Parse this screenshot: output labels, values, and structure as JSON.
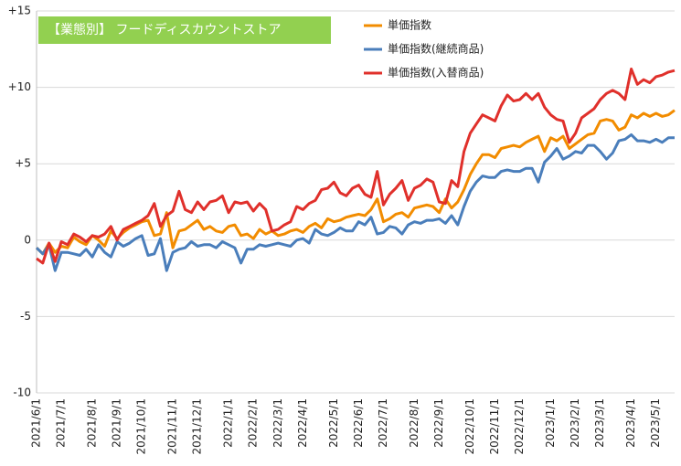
{
  "chart_data": {
    "type": "line",
    "title": "【業態別】 フードディスカウントストア",
    "categories": [
      "2021/6/1",
      null,
      null,
      null,
      "2021/7/1",
      null,
      null,
      null,
      null,
      "2021/8/1",
      null,
      null,
      null,
      "2021/9/1",
      null,
      null,
      null,
      "2021/10/1",
      null,
      null,
      null,
      null,
      "2021/11/1",
      null,
      null,
      null,
      "2021/12/1",
      null,
      null,
      null,
      null,
      "2022/1/1",
      null,
      null,
      null,
      "2022/2/1",
      null,
      null,
      null,
      "2022/3/1",
      null,
      null,
      null,
      "2022/4/1",
      null,
      null,
      null,
      null,
      "2022/5/1",
      null,
      null,
      null,
      "2022/6/1",
      null,
      null,
      null,
      "2022/7/1",
      null,
      null,
      null,
      null,
      "2022/8/1",
      null,
      null,
      null,
      "2022/9/1",
      null,
      null,
      null,
      null,
      "2022/10/1",
      null,
      null,
      null,
      "2022/11/1",
      null,
      null,
      null,
      "2022/12/1",
      null,
      null,
      null,
      null,
      "2023/1/1",
      null,
      null,
      null,
      "2023/2/1",
      null,
      null,
      null,
      "2023/3/1",
      null,
      null,
      null,
      null,
      "2023/4/1",
      null,
      null,
      null,
      "2023/5/1",
      null,
      null,
      null
    ],
    "series": [
      {
        "name": "単価指数",
        "color": "#f28c00",
        "values": [
          -0.5,
          -0.9,
          -0.2,
          -0.8,
          -0.4,
          -0.5,
          0.2,
          -0.1,
          -0.3,
          0.3,
          0.0,
          -0.4,
          0.6,
          0.1,
          0.5,
          0.8,
          1.0,
          1.2,
          1.3,
          0.3,
          0.4,
          1.8,
          -0.5,
          0.6,
          0.7,
          1.0,
          1.3,
          0.7,
          0.9,
          0.6,
          0.5,
          0.9,
          1.0,
          0.3,
          0.4,
          0.1,
          0.7,
          0.4,
          0.6,
          0.3,
          0.4,
          0.6,
          0.7,
          0.5,
          0.9,
          1.1,
          0.8,
          1.4,
          1.2,
          1.3,
          1.5,
          1.6,
          1.7,
          1.6,
          2.0,
          2.7,
          1.2,
          1.4,
          1.7,
          1.8,
          1.5,
          2.1,
          2.2,
          2.3,
          2.2,
          1.8,
          2.7,
          2.1,
          2.5,
          3.3,
          4.3,
          5.0,
          5.6,
          5.6,
          5.4,
          6.0,
          6.1,
          6.2,
          6.1,
          6.4,
          6.6,
          6.8,
          5.8,
          6.7,
          6.5,
          6.8,
          6.0,
          6.3,
          6.6,
          6.9,
          7.0,
          7.8,
          7.9,
          7.8,
          7.2,
          7.4,
          8.2,
          8.0,
          8.3,
          8.1,
          8.3,
          8.1,
          8.2,
          8.5
        ]
      },
      {
        "name": "単価指数(継続商品)",
        "color": "#4a7ebb",
        "values": [
          -0.5,
          -0.9,
          -0.3,
          -2.0,
          -0.8,
          -0.8,
          -0.9,
          -1.0,
          -0.6,
          -1.1,
          -0.3,
          -0.8,
          -1.1,
          -0.1,
          -0.4,
          -0.2,
          0.1,
          0.3,
          -1.0,
          -0.9,
          0.1,
          -2.0,
          -0.8,
          -0.6,
          -0.5,
          -0.1,
          -0.4,
          -0.3,
          -0.3,
          -0.5,
          -0.1,
          -0.3,
          -0.5,
          -1.5,
          -0.6,
          -0.6,
          -0.3,
          -0.4,
          -0.3,
          -0.2,
          -0.3,
          -0.4,
          0.0,
          0.1,
          -0.2,
          0.7,
          0.4,
          0.3,
          0.5,
          0.8,
          0.6,
          0.6,
          1.2,
          1.0,
          1.5,
          0.4,
          0.5,
          0.9,
          0.8,
          0.4,
          1.0,
          1.2,
          1.1,
          1.3,
          1.3,
          1.4,
          1.1,
          1.6,
          1.0,
          2.2,
          3.2,
          3.8,
          4.2,
          4.1,
          4.1,
          4.5,
          4.6,
          4.5,
          4.5,
          4.7,
          4.7,
          3.8,
          5.1,
          5.5,
          6.0,
          5.3,
          5.5,
          5.8,
          5.7,
          6.2,
          6.2,
          5.8,
          5.3,
          5.7,
          6.5,
          6.6,
          6.9,
          6.5,
          6.5,
          6.4,
          6.6,
          6.4,
          6.7,
          6.7
        ]
      },
      {
        "name": "単価指数(入替商品)",
        "color": "#e0302b",
        "values": [
          -1.2,
          -1.5,
          -0.2,
          -1.4,
          -0.1,
          -0.3,
          0.4,
          0.2,
          -0.1,
          0.3,
          0.2,
          0.4,
          0.9,
          0.0,
          0.7,
          0.9,
          1.1,
          1.3,
          1.6,
          2.4,
          0.9,
          1.6,
          1.9,
          3.2,
          2.0,
          1.8,
          2.5,
          2.0,
          2.5,
          2.6,
          2.9,
          1.8,
          2.5,
          2.4,
          2.5,
          1.9,
          2.4,
          2.0,
          0.6,
          0.7,
          1.0,
          1.2,
          2.2,
          2.0,
          2.4,
          2.6,
          3.3,
          3.4,
          3.8,
          3.1,
          2.9,
          3.4,
          3.6,
          3.0,
          2.8,
          4.5,
          2.3,
          3.0,
          3.4,
          3.9,
          2.6,
          3.4,
          3.6,
          4.0,
          3.8,
          2.5,
          2.4,
          3.9,
          3.5,
          5.8,
          7.0,
          7.6,
          8.2,
          8.0,
          7.8,
          8.8,
          9.5,
          9.1,
          9.2,
          9.6,
          9.2,
          9.6,
          8.7,
          8.2,
          7.9,
          7.8,
          6.4,
          7.0,
          8.0,
          8.3,
          8.6,
          9.2,
          9.6,
          9.8,
          9.6,
          9.2,
          11.2,
          10.2,
          10.5,
          10.3,
          10.7,
          10.8,
          11.0,
          11.1
        ]
      }
    ],
    "ylim": [
      -10,
      15
    ],
    "yticks": [
      -10,
      -5,
      0,
      {
        "value": 5,
        "label": "+5"
      },
      {
        "value": 10,
        "label": "+10"
      },
      {
        "value": 15,
        "label": "+15"
      }
    ],
    "grid": true,
    "legend": "top"
  }
}
